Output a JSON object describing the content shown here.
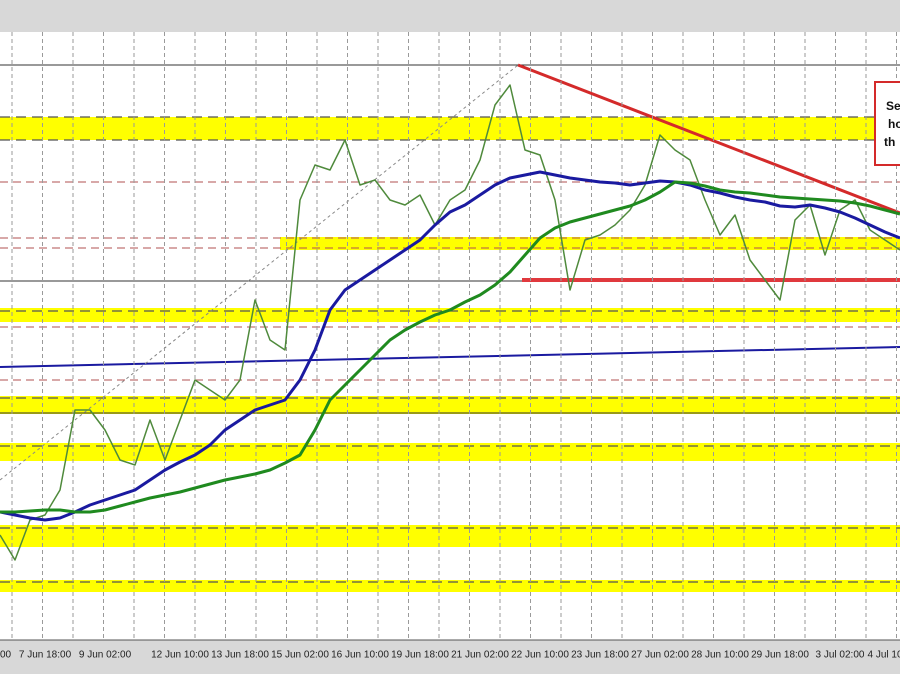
{
  "chart_data": {
    "type": "line",
    "categories": [
      "00",
      null,
      null,
      "7 Jun 18:00",
      null,
      null,
      null,
      "9 Jun 02:00",
      null,
      null,
      null,
      null,
      "12 Jun 10:00",
      null,
      null,
      null,
      "13 Jun 18:00",
      null,
      null,
      null,
      "15 Jun 02:00",
      null,
      null,
      null,
      "16 Jun 10:00",
      null,
      null,
      null,
      "19 Jun 18:00",
      null,
      null,
      null,
      "21 Jun 02:00",
      null,
      null,
      null,
      "22 Jun 10:00",
      null,
      null,
      null,
      "23 Jun 18:00",
      null,
      null,
      null,
      "27 Jun 02:00",
      null,
      null,
      null,
      "28 Jun 10:00",
      null,
      null,
      null,
      "29 Jun 18:00",
      null,
      null,
      null,
      "3 Jul 02:00",
      null,
      null,
      "4 Jul 10",
      null
    ],
    "series": [
      {
        "color": "#4f8a3c",
        "values": [
          105,
          80,
          120,
          125,
          150,
          230,
          230,
          210,
          180,
          175,
          220,
          180,
          220,
          260,
          250,
          240,
          260,
          340,
          300,
          290,
          440,
          475,
          470,
          500,
          455,
          460,
          440,
          435,
          445,
          415,
          440,
          450,
          480,
          535,
          555,
          490,
          485,
          440,
          350,
          400,
          405,
          415,
          430,
          455,
          505,
          490,
          480,
          440,
          405,
          425,
          380,
          360,
          340,
          420,
          435,
          385,
          430,
          440,
          410,
          400,
          390
        ]
      },
      {
        "color": "#1a1aa0",
        "values": [
          128,
          125,
          122,
          120,
          122,
          128,
          135,
          140,
          145,
          150,
          160,
          170,
          178,
          185,
          195,
          210,
          220,
          230,
          235,
          240,
          260,
          290,
          330,
          350,
          360,
          370,
          380,
          390,
          400,
          415,
          428,
          435,
          445,
          455,
          462,
          465,
          468,
          465,
          462,
          460,
          458,
          457,
          455,
          457,
          459,
          458,
          455,
          450,
          447,
          443,
          440,
          438,
          434,
          433,
          435,
          432,
          428,
          422,
          415,
          408,
          402
        ]
      },
      {
        "color": "#1f8a1f",
        "values": [
          128,
          128,
          129,
          130,
          130,
          128,
          128,
          130,
          134,
          138,
          142,
          145,
          148,
          152,
          156,
          160,
          163,
          166,
          170,
          177,
          185,
          210,
          240,
          255,
          270,
          285,
          300,
          310,
          318,
          325,
          330,
          338,
          345,
          355,
          368,
          385,
          402,
          412,
          418,
          422,
          426,
          430,
          434,
          440,
          448,
          458,
          457,
          454,
          450,
          448,
          447,
          445,
          443,
          442,
          441,
          440,
          439,
          437,
          434,
          430,
          426
        ]
      }
    ],
    "ylim": [
      0,
      608
    ],
    "annotation": [
      "Se",
      "ho",
      "th"
    ]
  }
}
